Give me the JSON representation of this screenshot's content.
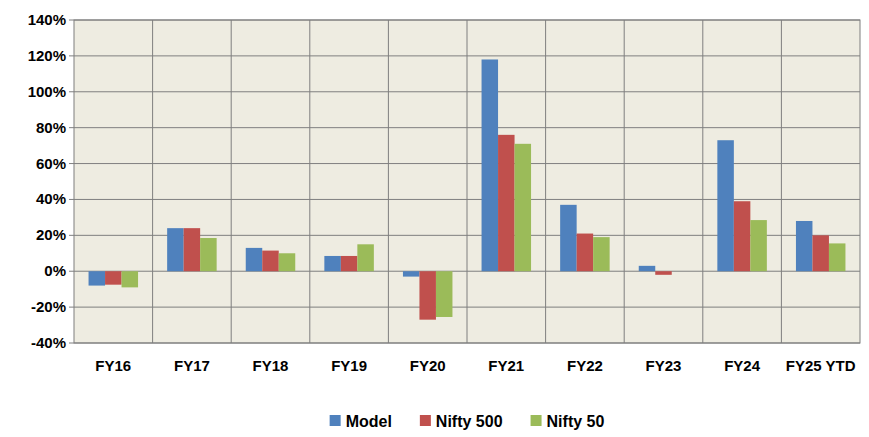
{
  "chart_data": {
    "type": "bar",
    "categories": [
      "FY16",
      "FY17",
      "FY18",
      "FY19",
      "FY20",
      "FY21",
      "FY22",
      "FY23",
      "FY24",
      "FY25 YTD"
    ],
    "series": [
      {
        "name": "Model",
        "color": "#4f81bd",
        "values": [
          -8,
          24,
          13,
          8.5,
          -3,
          118,
          37,
          3,
          73,
          28
        ]
      },
      {
        "name": "Nifty 500",
        "color": "#c0504d",
        "values": [
          -7.5,
          24,
          11.5,
          8.5,
          -27,
          76,
          21,
          -2,
          39,
          20
        ]
      },
      {
        "name": "Nifty 50",
        "color": "#9bbb59",
        "values": [
          -9,
          18.5,
          10,
          15,
          -25.5,
          71,
          19,
          0,
          28.5,
          15.5
        ]
      }
    ],
    "ylim": [
      -40,
      140
    ],
    "yticks": [
      {
        "value": -40,
        "label": "-40%"
      },
      {
        "value": -20,
        "label": "-20%"
      },
      {
        "value": 0,
        "label": "0%"
      },
      {
        "value": 20,
        "label": "20%"
      },
      {
        "value": 40,
        "label": "40%"
      },
      {
        "value": 60,
        "label": "60%"
      },
      {
        "value": 80,
        "label": "80%"
      },
      {
        "value": 100,
        "label": "100%"
      },
      {
        "value": 120,
        "label": "120%"
      },
      {
        "value": 140,
        "label": "140%"
      }
    ],
    "grid": true,
    "legend": "bottom"
  }
}
